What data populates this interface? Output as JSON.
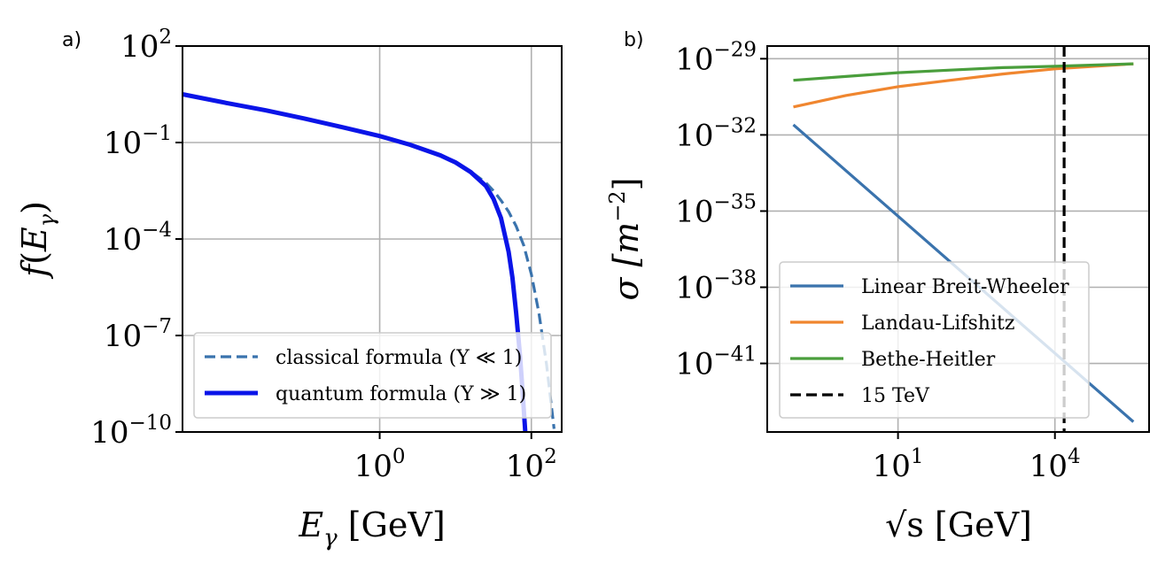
{
  "chart_data": [
    {
      "type": "line",
      "panel_label": "a)",
      "xscale": "log",
      "yscale": "log",
      "xlabel": "E_γ [GeV]",
      "ylabel": "f(E_γ)",
      "xlim_log10": [
        -2.6,
        2.4
      ],
      "ylim_log10": [
        -10,
        2
      ],
      "xticks": [
        {
          "exp": "0",
          "base": "10"
        },
        {
          "exp": "2",
          "base": "10"
        }
      ],
      "yticks": [
        {
          "exp": "2",
          "base": "10"
        },
        {
          "exp": "−1",
          "base": "10"
        },
        {
          "exp": "−4",
          "base": "10"
        },
        {
          "exp": "−7",
          "base": "10"
        },
        {
          "exp": "−10",
          "base": "10"
        }
      ],
      "legend_position": "lower-right",
      "series": [
        {
          "name": "classical formula (Υ ≪ 1)",
          "color": "#3a73ad",
          "style": "dashed",
          "log10_x": [
            -2.6,
            -2.0,
            -1.5,
            -1.0,
            -0.5,
            0.0,
            0.4,
            0.8,
            1.0,
            1.2,
            1.4,
            1.5,
            1.6,
            1.7,
            1.8,
            1.9,
            2.0,
            2.1,
            2.2,
            2.3
          ],
          "log10_y": [
            0.5,
            0.22,
            0.0,
            -0.25,
            -0.52,
            -0.8,
            -1.07,
            -1.4,
            -1.62,
            -1.9,
            -2.25,
            -2.5,
            -2.8,
            -3.15,
            -3.6,
            -4.2,
            -5.1,
            -6.3,
            -7.9,
            -9.9
          ]
        },
        {
          "name": "quantum formula (Υ ≫ 1)",
          "color": "#0a14e8",
          "style": "solid",
          "log10_x": [
            -2.6,
            -2.0,
            -1.5,
            -1.0,
            -0.5,
            0.0,
            0.4,
            0.8,
            1.0,
            1.2,
            1.4,
            1.5,
            1.6,
            1.7,
            1.75,
            1.8,
            1.85,
            1.88,
            1.9,
            1.92
          ],
          "log10_y": [
            0.5,
            0.22,
            0.0,
            -0.25,
            -0.52,
            -0.8,
            -1.07,
            -1.4,
            -1.62,
            -1.92,
            -2.35,
            -2.75,
            -3.35,
            -4.4,
            -5.2,
            -6.3,
            -7.6,
            -8.6,
            -9.3,
            -10.0
          ]
        }
      ]
    },
    {
      "type": "line",
      "panel_label": "b)",
      "xscale": "log",
      "yscale": "log",
      "xlabel": "√s [GeV]",
      "ylabel": "σ [m^−2]",
      "xlim_log10": [
        -1.5,
        5.8
      ],
      "ylim_log10": [
        -43.7,
        -28.5
      ],
      "xticks": [
        {
          "exp": "1",
          "base": "10"
        },
        {
          "exp": "4",
          "base": "10"
        }
      ],
      "yticks": [
        {
          "exp": "−29",
          "base": "10"
        },
        {
          "exp": "−32",
          "base": "10"
        },
        {
          "exp": "−35",
          "base": "10"
        },
        {
          "exp": "−38",
          "base": "10"
        },
        {
          "exp": "−41",
          "base": "10"
        }
      ],
      "legend_position": "lower-left",
      "series": [
        {
          "name": "Linear Breit-Wheeler",
          "color": "#3a73ad",
          "style": "solid",
          "log10_x": [
            -1.0,
            5.5
          ],
          "log10_y": [
            -31.6,
            -43.3
          ]
        },
        {
          "name": "Landau-Lifshitz",
          "color": "#f0862f",
          "style": "solid",
          "log10_x": [
            -1.0,
            0.0,
            1.0,
            2.0,
            3.0,
            4.0,
            5.5
          ],
          "log10_y": [
            -30.9,
            -30.45,
            -30.1,
            -29.85,
            -29.6,
            -29.4,
            -29.2
          ]
        },
        {
          "name": "Bethe-Heitler",
          "color": "#4a9e3c",
          "style": "solid",
          "log10_x": [
            -1.0,
            0.0,
            1.0,
            2.0,
            3.0,
            4.0,
            5.5
          ],
          "log10_y": [
            -29.85,
            -29.7,
            -29.55,
            -29.45,
            -29.35,
            -29.3,
            -29.2
          ]
        },
        {
          "name": "15 TeV",
          "color": "#000000",
          "style": "dashed",
          "vline_log10_x": 4.176
        }
      ]
    }
  ]
}
